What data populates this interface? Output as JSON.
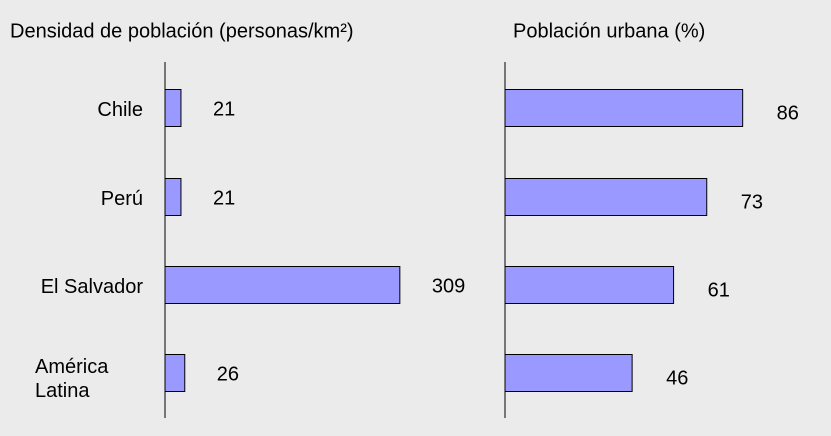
{
  "chart_data": [
    {
      "type": "bar",
      "orientation": "horizontal",
      "title": "Densidad de población (personas/km²)",
      "categories": [
        "Chile",
        "Perú",
        "El Salvador",
        "América Latina"
      ],
      "values": [
        21,
        21,
        309,
        26
      ],
      "color": "#9999ff",
      "xlim": [
        0,
        400
      ]
    },
    {
      "type": "bar",
      "orientation": "horizontal",
      "title": "Población urbana (%)",
      "values": [
        86,
        73,
        61,
        46
      ],
      "color": "#9999ff",
      "xlim": [
        0,
        110
      ]
    }
  ]
}
